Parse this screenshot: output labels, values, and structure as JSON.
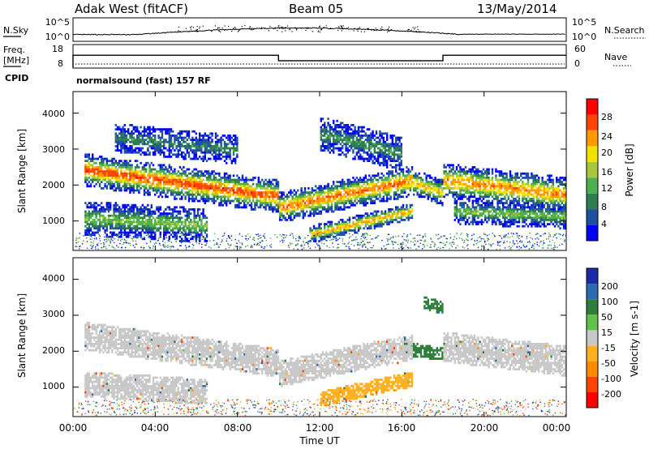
{
  "header": {
    "station": "Adak West (fitACF)",
    "beam": "Beam 05",
    "date": "13/May/2014"
  },
  "noise_panel": {
    "left_label": "N.Sky",
    "left_ticks": [
      "10^5",
      "10^0"
    ],
    "right_ticks": [
      "10^5",
      "10^0"
    ],
    "right_label": "N.Search"
  },
  "freq_panel": {
    "left_label_1": "Freq.",
    "left_label_2": "[MHz]",
    "left_ticks": [
      "18",
      "8"
    ],
    "right_ticks": [
      "60",
      "0"
    ],
    "right_label": "Nave",
    "cpid_label": "CPID",
    "cpid_text": "normalsound (fast) 157 RF",
    "freq_steps": [
      {
        "start_hour": 0.0,
        "end_hour": 10.0,
        "freq_mhz": 13.5
      },
      {
        "start_hour": 10.0,
        "end_hour": 18.0,
        "freq_mhz": 11.0
      },
      {
        "start_hour": 18.0,
        "end_hour": 24.0,
        "freq_mhz": 13.5
      }
    ],
    "nave": 9
  },
  "chart_data": [
    {
      "type": "heatmap",
      "name": "power",
      "ylabel": "Slant Range [km]",
      "y_ticks": [
        "1000",
        "2000",
        "3000",
        "4000"
      ],
      "ylim": [
        180,
        4600
      ],
      "xlim": [
        0,
        24
      ],
      "colorbar_label": "Power [dB]",
      "colorbar_ticks": [
        "4",
        "8",
        "12",
        "16",
        "20",
        "24",
        "28"
      ],
      "colors": [
        "#0000ff",
        "#1e4fa0",
        "#2e7d4f",
        "#4caf50",
        "#a8c83c",
        "#f5e000",
        "#ff9900",
        "#ff4400",
        "#ff0000"
      ],
      "bands": [
        {
          "t0": 0.5,
          "t1": 10.0,
          "r0": 2450,
          "r1": 1700,
          "w": 330,
          "peak": 27,
          "lower_noise": 0
        },
        {
          "t0": 10.0,
          "t1": 16.5,
          "r0": 1400,
          "r1": 2150,
          "w": 300,
          "peak": 25,
          "lower_noise": 0
        },
        {
          "t0": 16.5,
          "t1": 18.0,
          "r0": 2100,
          "r1": 1800,
          "w": 260,
          "peak": 21,
          "lower_noise": 0
        },
        {
          "t0": 18.0,
          "t1": 24.0,
          "r0": 2150,
          "r1": 1750,
          "w": 350,
          "peak": 24,
          "lower_noise": 0
        },
        {
          "t0": 11.5,
          "t1": 16.5,
          "r0": 650,
          "r1": 1300,
          "w": 170,
          "peak": 22,
          "lower_noise": 0
        },
        {
          "t0": 0.5,
          "t1": 6.5,
          "r0": 1100,
          "r1": 900,
          "w": 300,
          "peak": 14,
          "lower_noise": 1
        },
        {
          "t0": 18.5,
          "t1": 24.0,
          "r0": 1300,
          "r1": 1150,
          "w": 220,
          "peak": 14,
          "lower_noise": 1
        },
        {
          "t0": 2.0,
          "t1": 8.0,
          "r0": 3350,
          "r1": 3000,
          "w": 250,
          "peak": 9,
          "lower_noise": 1
        },
        {
          "t0": 12.0,
          "t1": 16.0,
          "r0": 3450,
          "r1": 2900,
          "w": 300,
          "peak": 10,
          "lower_noise": 1
        }
      ]
    },
    {
      "type": "heatmap",
      "name": "velocity",
      "ylabel": "Slant Range [km]",
      "y_ticks": [
        "1000",
        "2000",
        "3000",
        "4000"
      ],
      "ylim": [
        180,
        4600
      ],
      "xlim": [
        0,
        24
      ],
      "x_ticks": [
        "00:00",
        "04:00",
        "08:00",
        "12:00",
        "16:00",
        "20:00",
        "00:00"
      ],
      "xlabel": "Time UT",
      "colorbar_label": "Velocity [m s-1]",
      "colorbar_ticks": [
        "200",
        "100",
        "50",
        "15",
        "-15",
        "-50",
        "-100",
        "-200"
      ],
      "colors": [
        "#1a2aa8",
        "#2b6bb0",
        "#2e7d3a",
        "#5fc24a",
        "#c8c8c8",
        "#ffb020",
        "#ff8c00",
        "#ff4400",
        "#ff0000"
      ],
      "regions": [
        {
          "t0": 0.5,
          "t1": 10.0,
          "r0": 2450,
          "r1": 1700,
          "w": 330,
          "v": 0
        },
        {
          "t0": 10.0,
          "t1": 16.5,
          "r0": 1400,
          "r1": 2150,
          "w": 300,
          "v": 0
        },
        {
          "t0": 18.0,
          "t1": 24.0,
          "r0": 2150,
          "r1": 1750,
          "w": 350,
          "v": 0
        },
        {
          "t0": 0.5,
          "t1": 6.5,
          "r0": 1100,
          "r1": 900,
          "w": 300,
          "v": 0
        },
        {
          "t0": 12.0,
          "t1": 16.5,
          "r0": 700,
          "r1": 1250,
          "w": 180,
          "v": -40
        },
        {
          "t0": 17.0,
          "t1": 18.0,
          "r0": 3400,
          "r1": 3200,
          "w": 150,
          "v": 40
        },
        {
          "t0": 16.0,
          "t1": 18.0,
          "r0": 2100,
          "r1": 1950,
          "w": 160,
          "v": 40
        }
      ]
    }
  ]
}
